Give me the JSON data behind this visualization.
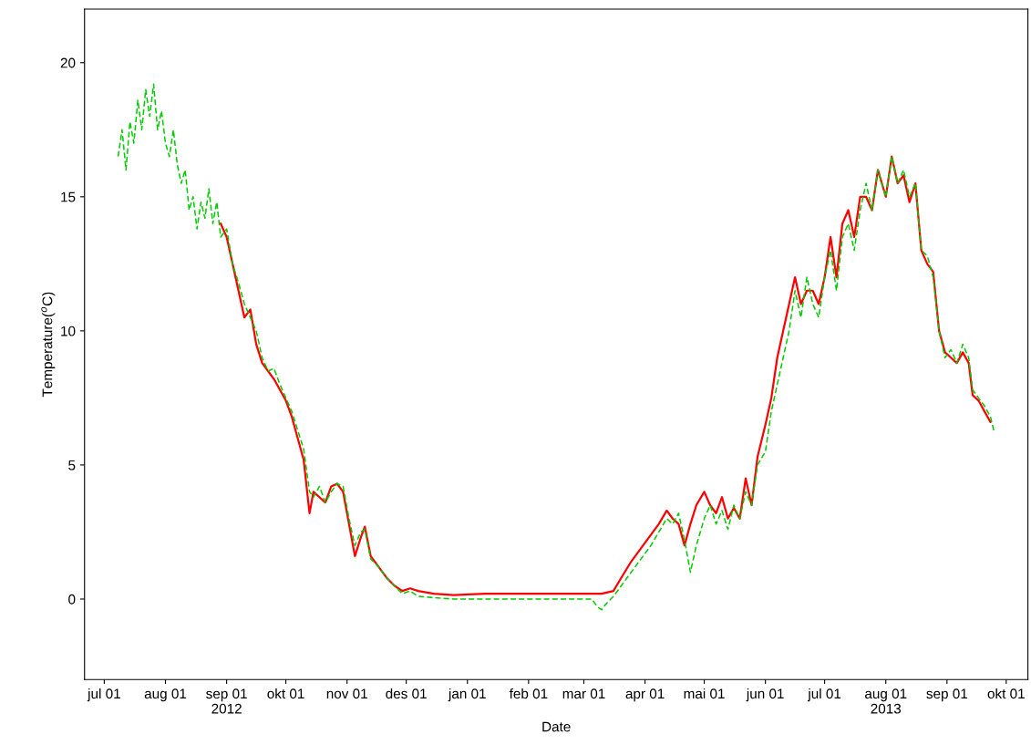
{
  "chart_data": {
    "type": "line",
    "xlabel": "Date",
    "ylabel": "Temperature($^{o}$C)",
    "xlim": [
      "2012-06-21",
      "2013-10-12"
    ],
    "ylim": [
      -3,
      22
    ],
    "yticks": [
      0,
      5,
      10,
      15,
      20
    ],
    "xticks": [
      {
        "value": "2012-07-01",
        "label": "jul 01"
      },
      {
        "value": "2012-08-01",
        "label": "aug 01"
      },
      {
        "value": "2012-09-01",
        "label": "sep 01\n2012"
      },
      {
        "value": "2012-10-01",
        "label": "okt 01"
      },
      {
        "value": "2012-11-01",
        "label": "nov 01"
      },
      {
        "value": "2012-12-01",
        "label": "des 01"
      },
      {
        "value": "2013-01-01",
        "label": "jan 01"
      },
      {
        "value": "2013-02-01",
        "label": "feb 01"
      },
      {
        "value": "2013-03-01",
        "label": "mar 01"
      },
      {
        "value": "2013-04-01",
        "label": "apr 01"
      },
      {
        "value": "2013-05-01",
        "label": "mai 01"
      },
      {
        "value": "2013-06-01",
        "label": "jun 01"
      },
      {
        "value": "2013-07-01",
        "label": "jul 01"
      },
      {
        "value": "2013-08-01",
        "label": "aug 01\n2013"
      },
      {
        "value": "2013-09-01",
        "label": "sep 01"
      },
      {
        "value": "2013-10-01",
        "label": "okt 01"
      }
    ],
    "grid": false,
    "legend": false,
    "series": [
      {
        "color": "#ff0000",
        "line_style": "solid",
        "x": [
          "2012-08-29",
          "2012-09-01",
          "2012-09-04",
          "2012-09-07",
          "2012-09-10",
          "2012-09-13",
          "2012-09-16",
          "2012-09-19",
          "2012-09-22",
          "2012-09-25",
          "2012-09-28",
          "2012-10-01",
          "2012-10-04",
          "2012-10-07",
          "2012-10-10",
          "2012-10-13",
          "2012-10-15",
          "2012-10-18",
          "2012-10-21",
          "2012-10-24",
          "2012-10-27",
          "2012-10-30",
          "2012-11-02",
          "2012-11-05",
          "2012-11-08",
          "2012-11-10",
          "2012-11-13",
          "2012-11-17",
          "2012-11-21",
          "2012-11-25",
          "2012-11-29",
          "2012-12-03",
          "2012-12-07",
          "2012-12-15",
          "2012-12-25",
          "2013-01-10",
          "2013-02-01",
          "2013-02-20",
          "2013-03-10",
          "2013-03-16",
          "2013-03-20",
          "2013-03-25",
          "2013-03-30",
          "2013-04-04",
          "2013-04-08",
          "2013-04-12",
          "2013-04-15",
          "2013-04-18",
          "2013-04-21",
          "2013-04-24",
          "2013-04-27",
          "2013-05-01",
          "2013-05-04",
          "2013-05-07",
          "2013-05-10",
          "2013-05-13",
          "2013-05-16",
          "2013-05-19",
          "2013-05-22",
          "2013-05-25",
          "2013-05-28",
          "2013-06-01",
          "2013-06-04",
          "2013-06-07",
          "2013-06-10",
          "2013-06-13",
          "2013-06-16",
          "2013-06-19",
          "2013-06-22",
          "2013-06-25",
          "2013-06-28",
          "2013-07-01",
          "2013-07-04",
          "2013-07-07",
          "2013-07-10",
          "2013-07-13",
          "2013-07-16",
          "2013-07-19",
          "2013-07-22",
          "2013-07-25",
          "2013-07-28",
          "2013-08-01",
          "2013-08-04",
          "2013-08-07",
          "2013-08-10",
          "2013-08-13",
          "2013-08-16",
          "2013-08-19",
          "2013-08-22",
          "2013-08-25",
          "2013-08-28",
          "2013-08-31",
          "2013-09-03",
          "2013-09-06",
          "2013-09-09",
          "2013-09-12",
          "2013-09-14",
          "2013-09-17",
          "2013-09-20",
          "2013-09-23"
        ],
        "values": [
          14.0,
          13.5,
          12.5,
          11.5,
          10.5,
          10.8,
          9.5,
          8.8,
          8.5,
          8.2,
          7.8,
          7.4,
          6.8,
          6.0,
          5.2,
          3.2,
          4.0,
          3.8,
          3.6,
          4.2,
          4.3,
          4.0,
          2.8,
          1.6,
          2.3,
          2.7,
          1.6,
          1.2,
          0.8,
          0.5,
          0.3,
          0.4,
          0.3,
          0.2,
          0.15,
          0.2,
          0.2,
          0.2,
          0.2,
          0.3,
          0.8,
          1.4,
          1.9,
          2.4,
          2.8,
          3.3,
          3.0,
          2.8,
          2.0,
          2.8,
          3.5,
          4.0,
          3.5,
          3.2,
          3.8,
          3.0,
          3.4,
          3.0,
          4.5,
          3.5,
          5.3,
          6.5,
          7.5,
          9.0,
          10.0,
          11.0,
          12.0,
          11.0,
          11.5,
          11.5,
          11.0,
          12.0,
          13.5,
          12.0,
          14.0,
          14.5,
          13.5,
          15.0,
          15.0,
          14.5,
          16.0,
          15.0,
          16.5,
          15.5,
          15.8,
          14.8,
          15.5,
          13.0,
          12.5,
          12.2,
          10.0,
          9.2,
          9.0,
          8.8,
          9.2,
          8.8,
          7.6,
          7.4,
          7.0,
          6.6
        ]
      },
      {
        "color": "#00cc00",
        "line_style": "dashed",
        "x": [
          "2012-07-08",
          "2012-07-10",
          "2012-07-12",
          "2012-07-14",
          "2012-07-16",
          "2012-07-18",
          "2012-07-20",
          "2012-07-22",
          "2012-07-24",
          "2012-07-26",
          "2012-07-28",
          "2012-07-30",
          "2012-08-01",
          "2012-08-03",
          "2012-08-05",
          "2012-08-07",
          "2012-08-09",
          "2012-08-11",
          "2012-08-13",
          "2012-08-15",
          "2012-08-17",
          "2012-08-19",
          "2012-08-21",
          "2012-08-23",
          "2012-08-25",
          "2012-08-27",
          "2012-08-29",
          "2012-09-01",
          "2012-09-04",
          "2012-09-07",
          "2012-09-10",
          "2012-09-13",
          "2012-09-16",
          "2012-09-19",
          "2012-09-22",
          "2012-09-25",
          "2012-09-28",
          "2012-10-01",
          "2012-10-04",
          "2012-10-07",
          "2012-10-10",
          "2012-10-13",
          "2012-10-15",
          "2012-10-18",
          "2012-10-21",
          "2012-10-24",
          "2012-10-27",
          "2012-10-30",
          "2012-11-02",
          "2012-11-05",
          "2012-11-08",
          "2012-11-10",
          "2012-11-13",
          "2012-11-17",
          "2012-11-21",
          "2012-11-25",
          "2012-11-29",
          "2012-12-03",
          "2012-12-07",
          "2012-12-15",
          "2012-12-25",
          "2013-01-15",
          "2013-02-01",
          "2013-02-20",
          "2013-03-05",
          "2013-03-08",
          "2013-03-10",
          "2013-03-12",
          "2013-03-16",
          "2013-03-20",
          "2013-03-25",
          "2013-03-30",
          "2013-04-04",
          "2013-04-08",
          "2013-04-12",
          "2013-04-15",
          "2013-04-18",
          "2013-04-21",
          "2013-04-24",
          "2013-04-27",
          "2013-05-01",
          "2013-05-04",
          "2013-05-07",
          "2013-05-10",
          "2013-05-13",
          "2013-05-16",
          "2013-05-19",
          "2013-05-22",
          "2013-05-25",
          "2013-05-28",
          "2013-06-01",
          "2013-06-04",
          "2013-06-07",
          "2013-06-10",
          "2013-06-13",
          "2013-06-16",
          "2013-06-19",
          "2013-06-22",
          "2013-06-25",
          "2013-06-28",
          "2013-07-01",
          "2013-07-04",
          "2013-07-07",
          "2013-07-10",
          "2013-07-13",
          "2013-07-16",
          "2013-07-19",
          "2013-07-22",
          "2013-07-25",
          "2013-07-28",
          "2013-08-01",
          "2013-08-04",
          "2013-08-07",
          "2013-08-10",
          "2013-08-13",
          "2013-08-16",
          "2013-08-19",
          "2013-08-22",
          "2013-08-25",
          "2013-08-28",
          "2013-08-31",
          "2013-09-03",
          "2013-09-06",
          "2013-09-09",
          "2013-09-12",
          "2013-09-14",
          "2013-09-17",
          "2013-09-20",
          "2013-09-23",
          "2013-09-25"
        ],
        "values": [
          16.5,
          17.5,
          16.0,
          17.8,
          17.0,
          18.6,
          17.5,
          19.0,
          18.0,
          19.2,
          17.5,
          18.2,
          17.0,
          16.5,
          17.5,
          16.2,
          15.5,
          16.0,
          14.5,
          15.0,
          13.8,
          14.8,
          14.2,
          15.3,
          14.0,
          14.8,
          13.5,
          13.8,
          12.5,
          11.8,
          11.0,
          10.5,
          10.0,
          9.0,
          8.5,
          8.6,
          8.0,
          7.5,
          7.0,
          6.3,
          5.6,
          4.0,
          3.8,
          4.2,
          3.6,
          4.0,
          4.3,
          4.2,
          3.0,
          2.0,
          2.5,
          2.6,
          1.5,
          1.2,
          0.8,
          0.5,
          0.2,
          0.3,
          0.1,
          0.05,
          0.0,
          0.0,
          0.0,
          0.0,
          0.0,
          -0.3,
          -0.4,
          -0.2,
          0.1,
          0.5,
          1.0,
          1.5,
          2.0,
          2.5,
          3.0,
          2.8,
          3.2,
          2.2,
          1.0,
          2.0,
          3.0,
          3.5,
          2.8,
          3.3,
          2.6,
          3.5,
          3.0,
          4.0,
          3.5,
          5.0,
          5.5,
          7.0,
          8.0,
          9.0,
          10.0,
          11.5,
          10.5,
          12.0,
          11.0,
          10.5,
          12.0,
          13.0,
          11.5,
          13.5,
          14.0,
          13.0,
          14.5,
          15.5,
          14.5,
          16.0,
          15.0,
          16.5,
          15.5,
          16.0,
          15.0,
          15.5,
          13.0,
          12.8,
          12.0,
          10.0,
          9.0,
          9.3,
          8.8,
          9.5,
          9.0,
          7.8,
          7.5,
          7.2,
          6.8,
          6.2
        ]
      }
    ]
  }
}
